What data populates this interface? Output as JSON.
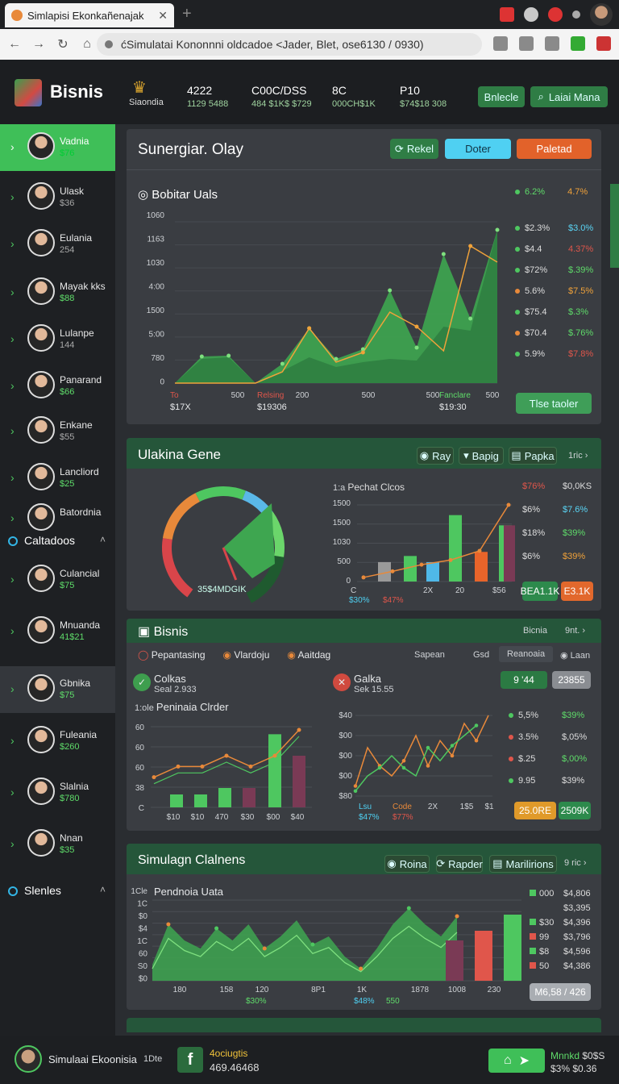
{
  "browser": {
    "tab_title": "Simlapisi Ekonkañenajak",
    "url": "ćSimulatai Kononnni oldcadoe <Jader, Blet, ose6130 / 0930)"
  },
  "app": {
    "name": "Bisnis",
    "brand_sub": "Siaondia",
    "stats": [
      {
        "main": "4222",
        "sub": "1129 5488"
      },
      {
        "main": "C00C/DSS",
        "sub": "484 $1K$ $729"
      },
      {
        "main": "8C",
        "sub": "000CH$1K"
      },
      {
        "main": "P10",
        "sub": "$74$18 308"
      }
    ],
    "buttons": {
      "primary": "Bnlecle",
      "secondary": "Laiai Mana"
    }
  },
  "sidebar": {
    "items": [
      {
        "name": "Vadnia",
        "value": "$76",
        "active": true
      },
      {
        "name": "Ulask",
        "value": "$36"
      },
      {
        "name": "Eulania",
        "value": "254"
      },
      {
        "name": "Mayak kks",
        "value": "$88"
      },
      {
        "name": "Lulanpe",
        "value": "144"
      },
      {
        "name": "Panarand",
        "value": "$66"
      },
      {
        "name": "Enkane",
        "value": "$55"
      },
      {
        "name": "Lancliord",
        "value": "$25"
      },
      {
        "name": "Batordnia",
        "value": ""
      }
    ],
    "section1": "Caltadoos",
    "items2": [
      {
        "name": "Culancial",
        "value": "$75"
      },
      {
        "name": "Mnuanda",
        "value": "41$21"
      },
      {
        "name": "Gbnika",
        "value": "$75",
        "active2": true
      },
      {
        "name": "Fuleania",
        "value": "$260"
      },
      {
        "name": "Slalnia",
        "value": "$780"
      },
      {
        "name": "Nnan",
        "value": "$35"
      }
    ],
    "section2": "Slenles"
  },
  "panel1": {
    "title": "Sunergiar. Olay",
    "btn_green": "Rekel",
    "btn_cyan": "Doter",
    "btn_orange": "Paletad",
    "chart_title": "Bobitar Uals",
    "yticks": [
      "1060",
      "1163",
      "1030",
      "4:00",
      "1500",
      "5:00",
      "780",
      "0"
    ],
    "xticks": [
      "500",
      "200",
      "500",
      "500",
      "500"
    ],
    "bottom_labels": [
      {
        "top": "To",
        "bottom": "$17X"
      },
      {
        "top": "Relsing",
        "bottom": "$19306"
      },
      {
        "top": "Fanclare",
        "bottom": "$19:30"
      }
    ],
    "legend_head": [
      "6.2%",
      "4.7%"
    ],
    "legend": [
      {
        "a": "$2.3%",
        "b": "$3.0%"
      },
      {
        "a": "$4.4",
        "b": "4.37%"
      },
      {
        "a": "$72%",
        "b": "$.39%"
      },
      {
        "a": "5.6%",
        "b": "$7.5%"
      },
      {
        "a": "$75.4",
        "b": "$.3%"
      },
      {
        "a": "$70.4",
        "b": "$.76%"
      },
      {
        "a": "5.9%",
        "b": "$7.8%"
      }
    ],
    "action_btn": "Tlse taoler",
    "chart_data": {
      "type": "area",
      "series": [
        {
          "values": [
            0,
            330,
            340,
            0,
            240,
            680,
            300,
            420,
            1150,
            440,
            1600,
            800,
            1900
          ]
        },
        {
          "values": [
            0,
            300,
            320,
            0,
            150,
            320,
            200,
            260,
            300,
            280,
            700,
            650,
            1900
          ]
        },
        {
          "values": [
            0,
            0,
            0,
            0,
            140,
            680,
            260,
            380,
            880,
            700,
            400,
            1700,
            1500
          ]
        }
      ]
    }
  },
  "panel2": {
    "title": "Ulakina Gene",
    "btns": [
      "Ray",
      "Bapig",
      "Papka"
    ],
    "more": "1ric",
    "gauge_label": "35$4MDGIK",
    "bar_title": "Pechat Clcos",
    "bar_yticks": [
      "1500",
      "1500",
      "1030",
      "500",
      "0"
    ],
    "bar_xticks": [
      "C",
      "2X",
      "20",
      "$56"
    ],
    "bar_bottom": [
      "$30%",
      "$47%"
    ],
    "legend": [
      {
        "a": "$76%",
        "b": "$0,0KS"
      },
      {
        "a": "$6%",
        "b": "$7.6%"
      },
      {
        "a": "$18%",
        "b": "$39%"
      },
      {
        "a": "$6%",
        "b": "$39%"
      }
    ],
    "pill_green": "BEA1.1K",
    "pill_orange": "E3.1K",
    "gauge": {
      "value": 0.62
    },
    "chart_data": {
      "type": "bar",
      "values": [
        380,
        500,
        380,
        1300,
        580,
        1100
      ],
      "line": [
        80,
        200,
        330,
        420,
        600,
        1500
      ]
    }
  },
  "panel3": {
    "title": "Bisnis",
    "right": "Bicnia",
    "more": "9nt.",
    "radios": [
      "Pepantasing",
      "Vlardoju",
      "Aaitdag"
    ],
    "tabs": [
      "Sapean",
      "Gsd",
      "Reanoaia",
      "Laan"
    ],
    "stat1": {
      "name": "Colkas",
      "sub": "Seal 2.933"
    },
    "stat2": {
      "name": "Galka",
      "sub": "Sek 15.55"
    },
    "badge_green": "9 '44",
    "badge_gray": "23855",
    "chart1_title": "Peninaia Clrder",
    "c1_yticks": [
      "60",
      "60",
      "60",
      "38",
      "C"
    ],
    "c1_xticks": [
      "$10",
      "$10",
      "470",
      "$30",
      "$00",
      "$40"
    ],
    "c2_yticks": [
      "$40",
      "$00",
      "$00",
      "$00",
      "$80"
    ],
    "c2_xticks": [
      "2X",
      "1$5",
      "$1"
    ],
    "c2_bottom": [
      {
        "top": "Lsu",
        "bottom": "$47%"
      },
      {
        "top": "Code",
        "bottom": "$77%"
      }
    ],
    "legend": [
      {
        "a": "5,5%",
        "b": "$39%"
      },
      {
        "a": "3.5%",
        "b": "$,05%"
      },
      {
        "a": "$.25",
        "b": "$,00%"
      },
      {
        "a": "9.95",
        "b": "$39%"
      }
    ],
    "pill_orange": "25.0RE",
    "pill_green": "2509K",
    "chart_data": [
      {
        "type": "bar",
        "values": [
          12,
          12,
          18,
          18,
          68,
          48
        ],
        "line": [
          28,
          38,
          38,
          48,
          38,
          48,
          72
        ]
      },
      {
        "type": "line",
        "series": [
          {
            "values": [
              10,
              48,
              30,
              20,
              35,
              60,
              30,
              55,
              40,
              72,
              55,
              80
            ]
          },
          {
            "values": [
              5,
              20,
              28,
              40,
              28,
              20,
              48,
              35,
              50,
              60,
              70
            ]
          }
        ]
      }
    ]
  },
  "panel4": {
    "title": "Simulagn Clalnens",
    "btns": [
      "Roina",
      "Rapder",
      "Marilirions"
    ],
    "more": "9 ric",
    "chart_title": "Pendnoia Uata",
    "yticks": [
      "1Cle",
      "1C",
      "$0",
      "$4",
      "1C",
      "60",
      "S0",
      "$0"
    ],
    "xticks": [
      "180",
      "158",
      "120",
      "8P1",
      "1K",
      "1878",
      "1008",
      "230"
    ],
    "bottom": [
      "$30%",
      "$48%",
      "550"
    ],
    "legend": [
      {
        "a": "000",
        "b": "$4,806"
      },
      {
        "a": "",
        "b": "$3,395"
      },
      {
        "a": "$30",
        "b": "$4,396"
      },
      {
        "a": "99",
        "b": "$3,796"
      },
      {
        "a": "$8",
        "b": "$4,596"
      },
      {
        "a": "50",
        "b": "$4,386"
      }
    ],
    "pill": "M6,58 / 426",
    "chart_data": {
      "type": "area",
      "values": [
        20,
        70,
        50,
        40,
        65,
        50,
        70,
        40,
        55,
        75,
        45,
        55,
        30,
        15,
        40,
        70,
        90,
        70,
        55,
        80
      ]
    }
  },
  "footer": {
    "name": "Simulaai Ekoonisia",
    "tag": "1Dte",
    "mid_title": "4ociugtis",
    "mid_sub": "469.46468",
    "right_top": "Mnnkd",
    "right_top2": "$0$S",
    "right_bot": "$3%",
    "right_bot2": "$0.36"
  },
  "colors": {
    "accent": "#4ec760",
    "cyan": "#5ad5f5",
    "orange": "#e8642a",
    "red": "#e0564b"
  }
}
